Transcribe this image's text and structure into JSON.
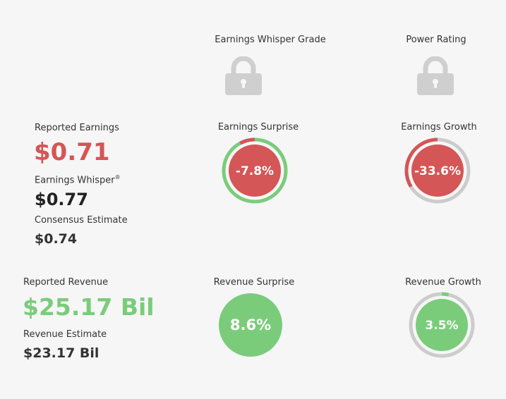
{
  "grades": {
    "earnings_whisper_grade": "Earnings Whisper Grade",
    "power_rating": "Power Rating"
  },
  "earnings": {
    "reported_label": "Reported Earnings",
    "reported_value": "$0.71",
    "whisper_label": "Earnings Whisper",
    "whisper_mark": "®",
    "whisper_value": "$0.77",
    "consensus_label": "Consensus Estimate",
    "consensus_value": "$0.74",
    "surprise_label": "Earnings Surprise",
    "surprise_value": "-7.8%",
    "surprise_pct": -7.8,
    "growth_label": "Earnings Growth",
    "growth_value": "-33.6%",
    "growth_pct": -33.6
  },
  "revenue": {
    "reported_label": "Reported Revenue",
    "reported_value": "$25.17 Bil",
    "estimate_label": "Revenue Estimate",
    "estimate_value": "$23.17 Bil",
    "surprise_label": "Revenue Surprise",
    "surprise_value": "8.6%",
    "surprise_pct": 8.6,
    "growth_label": "Revenue Growth",
    "growth_value": "3.5%",
    "growth_pct": 3.5
  },
  "colors": {
    "red": "#d45656",
    "green": "#7acc7a",
    "ring": "#cccccc",
    "lock": "#cfcfcf"
  },
  "icons": {
    "grade_lock": "lock-icon",
    "power_lock": "lock-icon"
  }
}
